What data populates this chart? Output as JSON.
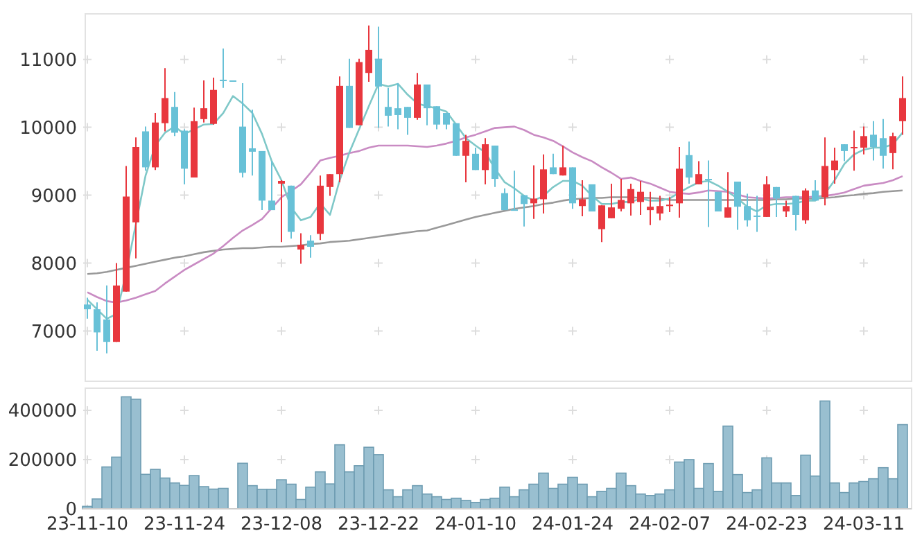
{
  "chart_data": [
    {
      "type": "candlestick",
      "categories": [
        null,
        null,
        null,
        null,
        null,
        null,
        null,
        null,
        null,
        null,
        null,
        null,
        null,
        null,
        null,
        null,
        null,
        null,
        null,
        null,
        null,
        null,
        null,
        null,
        null,
        null,
        null,
        null,
        null,
        null,
        null,
        null,
        null,
        null,
        null,
        null,
        null,
        null,
        null,
        null,
        null,
        null,
        null,
        null,
        null,
        null,
        null,
        null,
        null,
        null,
        null,
        null,
        null,
        null,
        null,
        null,
        null,
        null,
        null,
        null,
        null,
        null,
        null,
        null,
        null,
        null,
        null,
        null,
        null,
        null,
        null,
        null,
        null,
        null,
        null,
        null,
        null,
        null,
        null,
        null,
        null,
        null,
        null,
        null,
        null
      ],
      "ohlc": [
        [
          7390,
          7490,
          7180,
          7320
        ],
        [
          7320,
          7420,
          6710,
          6980
        ],
        [
          7170,
          7670,
          6670,
          6840
        ],
        [
          6840,
          8000,
          6840,
          7670
        ],
        [
          7580,
          9430,
          7580,
          8980
        ],
        [
          8600,
          9850,
          8070,
          9710
        ],
        [
          9940,
          10010,
          9360,
          9410
        ],
        [
          9410,
          10210,
          9370,
          10070
        ],
        [
          10060,
          10870,
          9940,
          10430
        ],
        [
          10300,
          10520,
          9870,
          9920
        ],
        [
          9950,
          9970,
          9160,
          9390
        ],
        [
          9260,
          10290,
          9260,
          10090
        ],
        [
          10120,
          10690,
          10070,
          10280
        ],
        [
          10050,
          10730,
          10040,
          10550
        ],
        [
          10700,
          11160,
          10580,
          10700
        ],
        [
          10690,
          10690,
          10690,
          10690
        ],
        [
          10010,
          10650,
          9260,
          9330
        ],
        [
          9690,
          10260,
          9290,
          9640
        ],
        [
          9650,
          9650,
          8780,
          8920
        ],
        [
          8920,
          9500,
          8780,
          8780
        ],
        [
          9170,
          9220,
          8310,
          9210
        ],
        [
          9140,
          9140,
          8360,
          8460
        ],
        [
          8200,
          8440,
          7990,
          8270
        ],
        [
          8330,
          8410,
          8080,
          8240
        ],
        [
          8430,
          9290,
          8340,
          9140
        ],
        [
          9120,
          9310,
          8990,
          9310
        ],
        [
          9310,
          10750,
          9190,
          10610
        ],
        [
          10610,
          11010,
          9990,
          9990
        ],
        [
          10030,
          11010,
          10030,
          10960
        ],
        [
          10800,
          11500,
          10670,
          11140
        ],
        [
          11010,
          11480,
          9990,
          10600
        ],
        [
          10300,
          10580,
          10010,
          10170
        ],
        [
          10280,
          10650,
          9970,
          10180
        ],
        [
          10300,
          10300,
          9890,
          10140
        ],
        [
          10140,
          10800,
          10110,
          10630
        ],
        [
          10630,
          10630,
          10030,
          10280
        ],
        [
          10310,
          10310,
          9970,
          10040
        ],
        [
          10210,
          10210,
          9970,
          10040
        ],
        [
          10060,
          10060,
          9580,
          9580
        ],
        [
          9580,
          9890,
          9190,
          9800
        ],
        [
          9610,
          9700,
          9370,
          9370
        ],
        [
          9370,
          9840,
          9160,
          9750
        ],
        [
          9730,
          9730,
          9120,
          9240
        ],
        [
          9030,
          9100,
          8780,
          8780
        ],
        [
          8790,
          9360,
          8780,
          8780
        ],
        [
          9000,
          9000,
          8540,
          8870
        ],
        [
          8880,
          9440,
          8650,
          8950
        ],
        [
          8940,
          9600,
          8730,
          9380
        ],
        [
          9410,
          9610,
          9310,
          9310
        ],
        [
          9290,
          9730,
          9290,
          9410
        ],
        [
          9410,
          9410,
          8800,
          8880
        ],
        [
          8840,
          9220,
          8690,
          8940
        ],
        [
          9160,
          9160,
          8760,
          8760
        ],
        [
          8500,
          8850,
          8310,
          8850
        ],
        [
          8660,
          9170,
          8660,
          8820
        ],
        [
          8800,
          9240,
          8760,
          8930
        ],
        [
          8880,
          9170,
          8700,
          9090
        ],
        [
          8900,
          9210,
          8710,
          9050
        ],
        [
          8780,
          9050,
          8560,
          8830
        ],
        [
          8730,
          8990,
          8630,
          8840
        ],
        [
          8850,
          8970,
          8750,
          8860
        ],
        [
          8880,
          9710,
          8670,
          9390
        ],
        [
          9590,
          9790,
          9170,
          9260
        ],
        [
          9160,
          9500,
          9160,
          9310
        ],
        [
          9240,
          9510,
          8530,
          9220
        ],
        [
          9050,
          9050,
          8760,
          8760
        ],
        [
          8670,
          9340,
          8670,
          8820
        ],
        [
          9200,
          9200,
          8490,
          8830
        ],
        [
          8840,
          9020,
          8540,
          8630
        ],
        [
          8700,
          8990,
          8460,
          8690
        ],
        [
          8680,
          9280,
          8680,
          9160
        ],
        [
          9120,
          9120,
          8680,
          8950
        ],
        [
          8760,
          8920,
          8680,
          8840
        ],
        [
          8990,
          8990,
          8480,
          8710
        ],
        [
          8630,
          9100,
          8580,
          9070
        ],
        [
          9070,
          9220,
          8920,
          8920
        ],
        [
          8970,
          9850,
          8850,
          9430
        ],
        [
          9370,
          9700,
          9170,
          9510
        ],
        [
          9750,
          9750,
          9500,
          9650
        ],
        [
          9700,
          9950,
          9360,
          9710
        ],
        [
          9700,
          10010,
          9600,
          9870
        ],
        [
          9890,
          10090,
          9510,
          9710
        ],
        [
          9840,
          10120,
          9390,
          9580
        ],
        [
          9620,
          9920,
          9380,
          9870
        ],
        [
          10090,
          10750,
          9890,
          10430
        ]
      ],
      "colors": [
        "#68c1d7",
        "#68c1d7",
        "#68c1d7",
        "#e8373e",
        "#e8373e",
        "#e8373e",
        "#68c1d7",
        "#e8373e",
        "#e8373e",
        "#68c1d7",
        "#68c1d7",
        "#e8373e",
        "#e8373e",
        "#e8373e",
        "#68c1d7",
        "#68c1d7",
        "#68c1d7",
        "#68c1d7",
        "#68c1d7",
        "#68c1d7",
        "#e8373e",
        "#68c1d7",
        "#e8373e",
        "#68c1d7",
        "#e8373e",
        "#e8373e",
        "#e8373e",
        "#68c1d7",
        "#e8373e",
        "#e8373e",
        "#68c1d7",
        "#68c1d7",
        "#68c1d7",
        "#68c1d7",
        "#e8373e",
        "#68c1d7",
        "#68c1d7",
        "#68c1d7",
        "#68c1d7",
        "#e8373e",
        "#68c1d7",
        "#e8373e",
        "#68c1d7",
        "#68c1d7",
        "#68c1d7",
        "#68c1d7",
        "#e8373e",
        "#e8373e",
        "#68c1d7",
        "#e8373e",
        "#68c1d7",
        "#e8373e",
        "#68c1d7",
        "#e8373e",
        "#e8373e",
        "#e8373e",
        "#e8373e",
        "#e8373e",
        "#e8373e",
        "#e8373e",
        "#e8373e",
        "#e8373e",
        "#68c1d7",
        "#e8373e",
        "#68c1d7",
        "#68c1d7",
        "#e8373e",
        "#68c1d7",
        "#68c1d7",
        "#68c1d7",
        "#e8373e",
        "#68c1d7",
        "#e8373e",
        "#68c1d7",
        "#e8373e",
        "#68c1d7",
        "#e8373e",
        "#e8373e",
        "#68c1d7",
        "#e8373e",
        "#e8373e",
        "#68c1d7",
        "#68c1d7",
        "#e8373e",
        "#e8373e"
      ],
      "series": [
        {
          "type": "line",
          "color": "#999999",
          "values": [
            7840,
            7850,
            7870,
            7900,
            7930,
            7960,
            7990,
            8020,
            8050,
            8080,
            8100,
            8130,
            8160,
            8180,
            8200,
            8210,
            8220,
            8220,
            8230,
            8240,
            8240,
            8250,
            8260,
            8280,
            8290,
            8310,
            8320,
            8330,
            8350,
            8370,
            8390,
            8410,
            8430,
            8450,
            8470,
            8480,
            8520,
            8560,
            8600,
            8640,
            8680,
            8710,
            8740,
            8770,
            8800,
            8820,
            8840,
            8870,
            8890,
            8920,
            8940,
            8950,
            8960,
            8960,
            8970,
            8970,
            8970,
            8960,
            8960,
            8950,
            8930,
            8930,
            8930,
            8930,
            8930,
            8930,
            8930,
            8930,
            8930,
            8930,
            8930,
            8940,
            8940,
            8950,
            8950,
            8950,
            8960,
            8970,
            8990,
            9000,
            9020,
            9030,
            9050,
            9060,
            9070
          ]
        },
        {
          "type": "line",
          "color": "#c98bc3",
          "values": [
            7570,
            7500,
            7440,
            7420,
            7450,
            7490,
            7540,
            7590,
            7700,
            7800,
            7900,
            7980,
            8060,
            8140,
            8250,
            8370,
            8480,
            8560,
            8650,
            8810,
            8970,
            9060,
            9160,
            9330,
            9510,
            9550,
            9580,
            9620,
            9650,
            9700,
            9730,
            9730,
            9730,
            9730,
            9720,
            9710,
            9730,
            9760,
            9800,
            9850,
            9890,
            9940,
            9990,
            10000,
            10010,
            9960,
            9890,
            9850,
            9800,
            9720,
            9630,
            9560,
            9500,
            9410,
            9330,
            9240,
            9260,
            9210,
            9170,
            9110,
            9050,
            9030,
            9020,
            9040,
            9070,
            9060,
            9050,
            9010,
            8970,
            8960,
            8950,
            8960,
            8970,
            8970,
            8970,
            8980,
            8990,
            9010,
            9040,
            9090,
            9140,
            9160,
            9180,
            9220,
            9280
          ]
        },
        {
          "type": "line",
          "color": "#7fc8c8",
          "values": [
            7460,
            7320,
            7180,
            7250,
            7860,
            null,
            9290,
            9730,
            9920,
            10010,
            9900,
            9970,
            10040,
            10050,
            10210,
            10460,
            10350,
            10210,
            9900,
            9500,
            9220,
            8820,
            8630,
            8680,
            8880,
            8710,
            9220,
            9630,
            9970,
            10310,
            10640,
            10600,
            10640,
            10480,
            10350,
            10310,
            10280,
            10230,
            10040,
            9840,
            9730,
            9630,
            9390,
            9190,
            9100,
            8990,
            8920,
            8990,
            9120,
            9210,
            9210,
            9140,
            8990,
            8870,
            8870,
            8900,
            8900,
            8950,
            8920,
            8920,
            8950,
            9040,
            9120,
            9190,
            9210,
            9140,
            9050,
            8950,
            8830,
            8760,
            8850,
            8870,
            8870,
            8880,
            8920,
            8920,
            9020,
            9220,
            9460,
            9600,
            9670,
            9700,
            9700,
            9750,
            9920
          ]
        }
      ],
      "ylim": [
        6260,
        11670
      ],
      "yticks": [
        7000,
        8000,
        9000,
        10000,
        11000
      ],
      "grid": true,
      "tick_labels": "y"
    },
    {
      "type": "bar",
      "categories": [
        "23-11-10",
        null,
        null,
        null,
        null,
        null,
        null,
        null,
        null,
        null,
        "23-11-24",
        null,
        null,
        null,
        null,
        null,
        null,
        null,
        null,
        null,
        "23-12-08",
        null,
        null,
        null,
        null,
        null,
        null,
        null,
        null,
        null,
        "23-12-22",
        null,
        null,
        null,
        null,
        null,
        null,
        null,
        null,
        null,
        "24-01-10",
        null,
        null,
        null,
        null,
        null,
        null,
        null,
        null,
        null,
        "24-01-24",
        null,
        null,
        null,
        null,
        null,
        null,
        null,
        null,
        null,
        "24-02-07",
        null,
        null,
        null,
        null,
        null,
        null,
        null,
        null,
        null,
        "24-02-23",
        null,
        null,
        null,
        null,
        null,
        null,
        null,
        null,
        null,
        "24-03-11",
        null,
        null,
        null,
        null
      ],
      "values": [
        10000,
        40000,
        170000,
        210000,
        455000,
        445000,
        140000,
        160000,
        125000,
        105000,
        95000,
        135000,
        90000,
        80000,
        83000,
        0,
        185000,
        94000,
        79000,
        79000,
        118000,
        100000,
        38000,
        88000,
        150000,
        101000,
        260000,
        150000,
        175000,
        250000,
        220000,
        77000,
        49000,
        77000,
        94000,
        60000,
        49000,
        38000,
        43000,
        34000,
        26000,
        38000,
        43000,
        88000,
        49000,
        77000,
        100000,
        145000,
        83000,
        100000,
        128000,
        100000,
        49000,
        71000,
        83000,
        145000,
        94000,
        60000,
        54000,
        60000,
        77000,
        190000,
        200000,
        83000,
        184000,
        71000,
        336000,
        139000,
        66000,
        77000,
        207000,
        105000,
        105000,
        54000,
        218000,
        133000,
        438000,
        105000,
        66000,
        105000,
        111000,
        122000,
        167000,
        122000,
        342000
      ],
      "color": "#93bccd",
      "ylim": [
        0,
        490000
      ],
      "yticks": [
        0,
        200000,
        400000
      ],
      "grid": true
    }
  ]
}
